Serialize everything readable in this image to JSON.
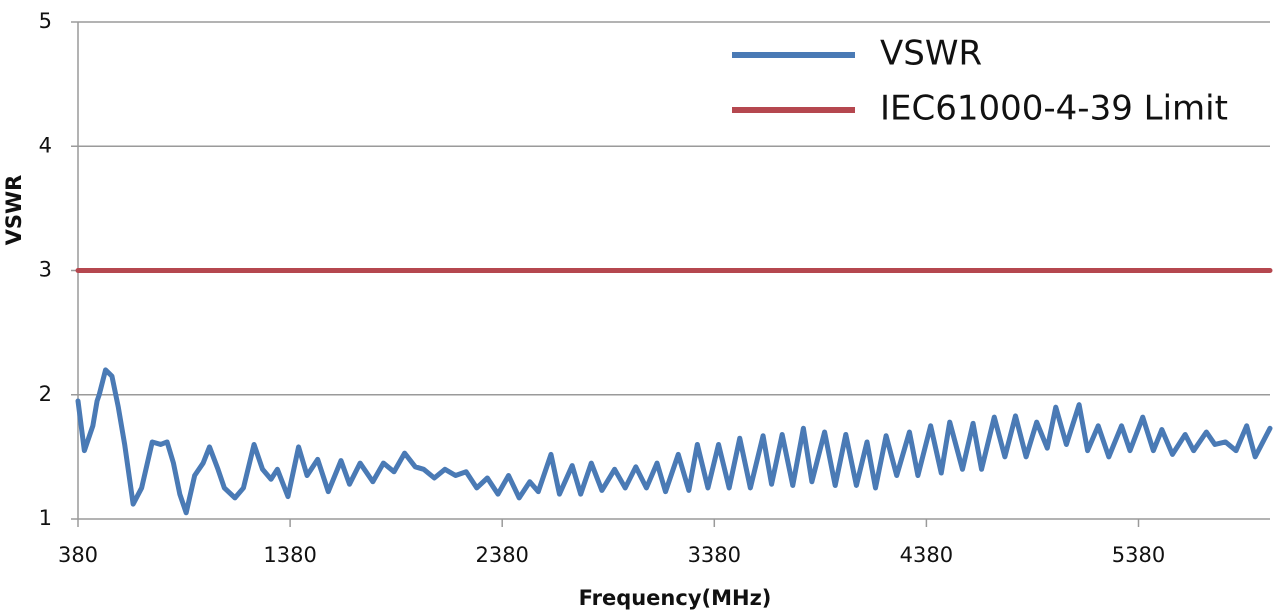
{
  "chart_data": {
    "type": "line",
    "xlabel": "Frequency(MHz)",
    "ylabel": "VSWR",
    "xlim": [
      380,
      6000
    ],
    "xticks": [
      380,
      1380,
      2380,
      3380,
      4380,
      5380
    ],
    "ylim": [
      1,
      5
    ],
    "yticks": [
      1,
      2,
      3,
      4,
      5
    ],
    "grid": true,
    "legend": "upper right",
    "series": [
      {
        "name": "VSWR",
        "color": "#4a7ab5",
        "x": [
          380,
          410,
          450,
          470,
          480,
          510,
          540,
          570,
          600,
          640,
          680,
          730,
          770,
          800,
          830,
          860,
          890,
          930,
          970,
          1000,
          1040,
          1070,
          1120,
          1160,
          1210,
          1250,
          1290,
          1320,
          1370,
          1420,
          1460,
          1510,
          1560,
          1620,
          1660,
          1710,
          1770,
          1820,
          1870,
          1920,
          1970,
          2010,
          2060,
          2110,
          2160,
          2210,
          2260,
          2310,
          2360,
          2410,
          2460,
          2510,
          2550,
          2610,
          2650,
          2710,
          2750,
          2800,
          2850,
          2910,
          2960,
          3010,
          3060,
          3110,
          3150,
          3210,
          3260,
          3300,
          3350,
          3400,
          3450,
          3500,
          3550,
          3610,
          3650,
          3700,
          3750,
          3800,
          3840,
          3900,
          3950,
          4000,
          4050,
          4100,
          4140,
          4190,
          4240,
          4300,
          4340,
          4400,
          4450,
          4490,
          4550,
          4600,
          4640,
          4700,
          4750,
          4800,
          4850,
          4900,
          4950,
          4990,
          5040,
          5100,
          5140,
          5190,
          5240,
          5300,
          5340,
          5400,
          5450,
          5490,
          5540,
          5600,
          5640,
          5700,
          5740,
          5790,
          5840,
          5890,
          5930,
          6000
        ],
        "values": [
          1.95,
          1.55,
          1.75,
          1.95,
          2.0,
          2.2,
          2.15,
          1.9,
          1.6,
          1.12,
          1.25,
          1.62,
          1.6,
          1.62,
          1.45,
          1.2,
          1.05,
          1.35,
          1.45,
          1.58,
          1.4,
          1.25,
          1.17,
          1.25,
          1.6,
          1.4,
          1.32,
          1.4,
          1.18,
          1.58,
          1.35,
          1.48,
          1.22,
          1.47,
          1.28,
          1.45,
          1.3,
          1.45,
          1.38,
          1.53,
          1.42,
          1.4,
          1.33,
          1.4,
          1.35,
          1.38,
          1.25,
          1.33,
          1.2,
          1.35,
          1.17,
          1.3,
          1.22,
          1.52,
          1.2,
          1.43,
          1.2,
          1.45,
          1.23,
          1.4,
          1.25,
          1.42,
          1.25,
          1.45,
          1.22,
          1.52,
          1.23,
          1.6,
          1.25,
          1.6,
          1.25,
          1.65,
          1.25,
          1.67,
          1.28,
          1.68,
          1.27,
          1.73,
          1.3,
          1.7,
          1.27,
          1.68,
          1.27,
          1.62,
          1.25,
          1.67,
          1.35,
          1.7,
          1.35,
          1.75,
          1.37,
          1.78,
          1.4,
          1.77,
          1.4,
          1.82,
          1.5,
          1.83,
          1.5,
          1.78,
          1.57,
          1.9,
          1.6,
          1.92,
          1.55,
          1.75,
          1.5,
          1.75,
          1.55,
          1.82,
          1.55,
          1.72,
          1.52,
          1.68,
          1.55,
          1.7,
          1.6,
          1.62,
          1.55,
          1.75,
          1.5,
          1.73
        ]
      },
      {
        "name": "IEC61000-4-39 Limit",
        "color": "#b5474f",
        "x": [
          380,
          6000
        ],
        "values": [
          3,
          3
        ]
      }
    ]
  }
}
